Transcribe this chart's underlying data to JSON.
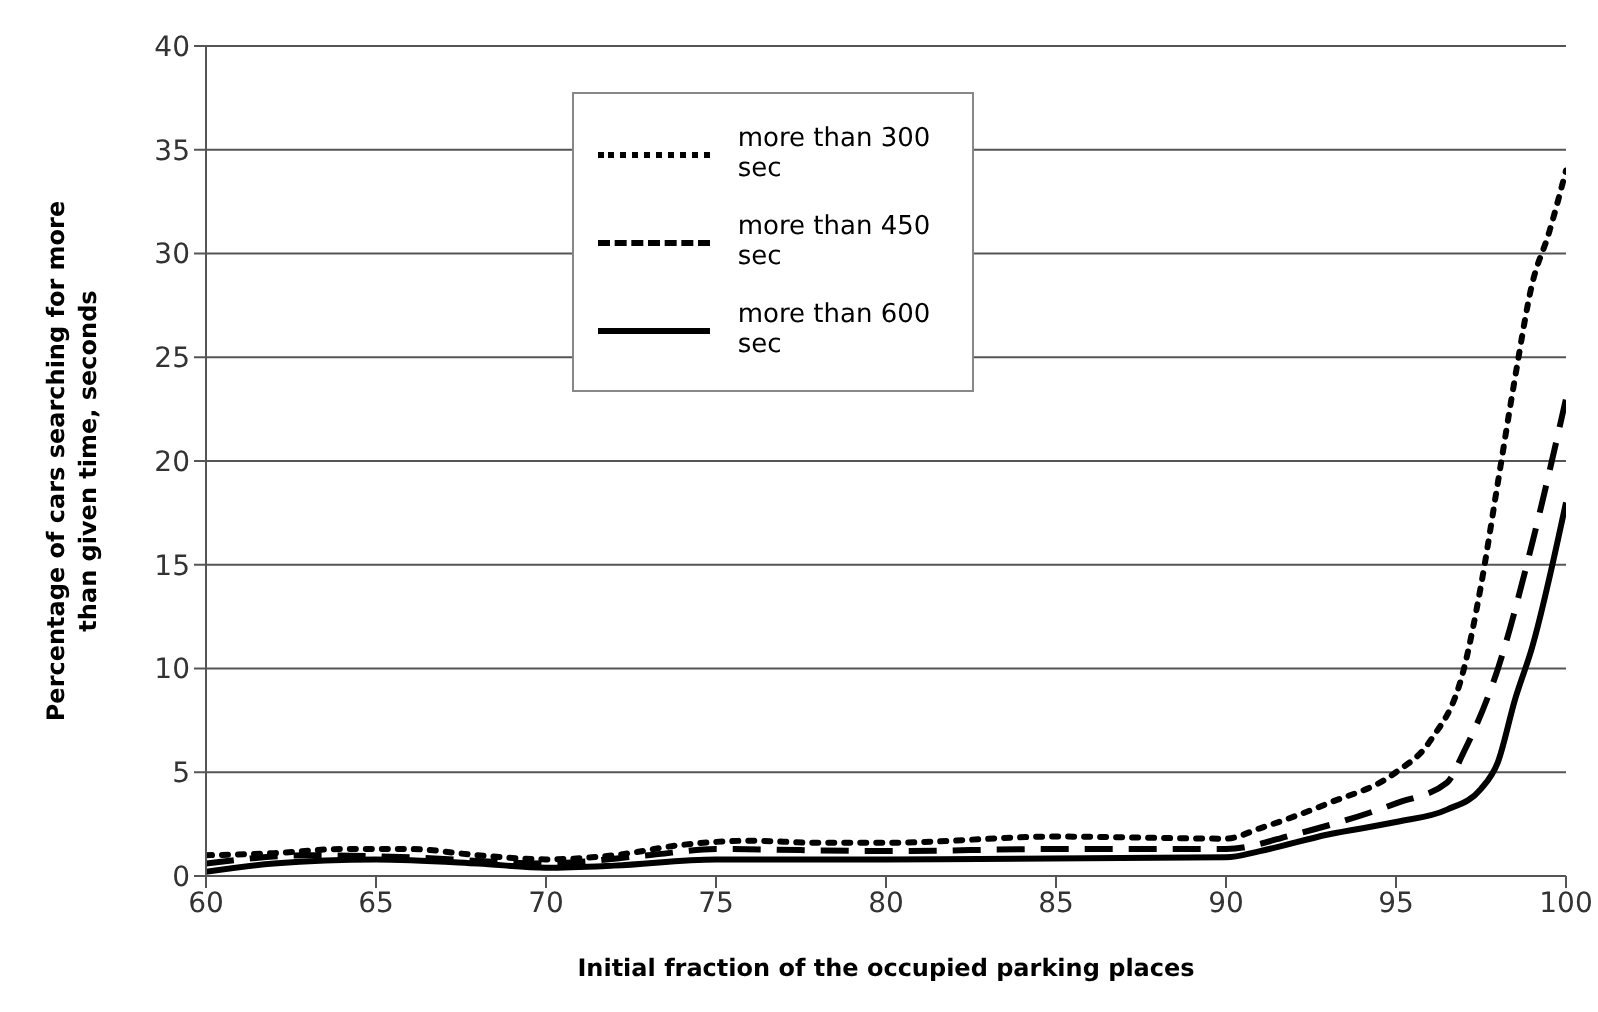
{
  "chart_data": {
    "type": "line",
    "xlabel": "Initial fraction of the occupied parking places",
    "ylabel": "Percentage of cars searching for more than given time, seconds",
    "xlim": [
      60,
      100
    ],
    "xticks": [
      60,
      65,
      70,
      75,
      80,
      85,
      90,
      95,
      100
    ],
    "ylim": [
      0,
      40
    ],
    "yticks": [
      0,
      5,
      10,
      15,
      20,
      25,
      30,
      35,
      40
    ],
    "grid": "y",
    "legend": "top",
    "marker": "none",
    "series": [
      {
        "name": "more than 300 sec",
        "color": "#000000",
        "line_style": "dotted",
        "x": [
          60,
          62,
          64,
          66,
          68,
          70,
          72,
          74,
          76,
          78,
          80,
          85,
          90,
          91,
          93,
          95,
          96,
          97,
          97.5,
          98,
          98.5,
          99,
          99.5,
          100
        ],
        "values": [
          1.0,
          1.1,
          1.3,
          1.3,
          1.0,
          0.8,
          1.0,
          1.5,
          1.7,
          1.6,
          1.6,
          1.9,
          1.8,
          2.3,
          3.5,
          5.0,
          6.5,
          10,
          14,
          19,
          24,
          28.5,
          31,
          34
        ]
      },
      {
        "name": "more than 450 sec",
        "color": "#000000",
        "line_style": "dashed",
        "x": [
          60,
          63,
          66,
          70,
          73,
          75,
          80,
          85,
          90,
          92,
          95,
          96.5,
          97,
          98,
          99,
          100
        ],
        "values": [
          0.6,
          1.0,
          0.9,
          0.6,
          1.0,
          1.3,
          1.2,
          1.3,
          1.3,
          2.0,
          3.5,
          4.5,
          6,
          10,
          16,
          23
        ]
      },
      {
        "name": "more than 600 sec",
        "color": "#000000",
        "line_style": "solid",
        "x": [
          60,
          62,
          65,
          68,
          70,
          72,
          75,
          80,
          90,
          91,
          93,
          95,
          96.5,
          97.5,
          98,
          98.5,
          99,
          100
        ],
        "values": [
          0.2,
          0.6,
          0.8,
          0.6,
          0.4,
          0.5,
          0.8,
          0.8,
          0.9,
          1.2,
          2.0,
          2.6,
          3.2,
          4.2,
          5.5,
          8.5,
          11,
          18
        ]
      }
    ]
  }
}
